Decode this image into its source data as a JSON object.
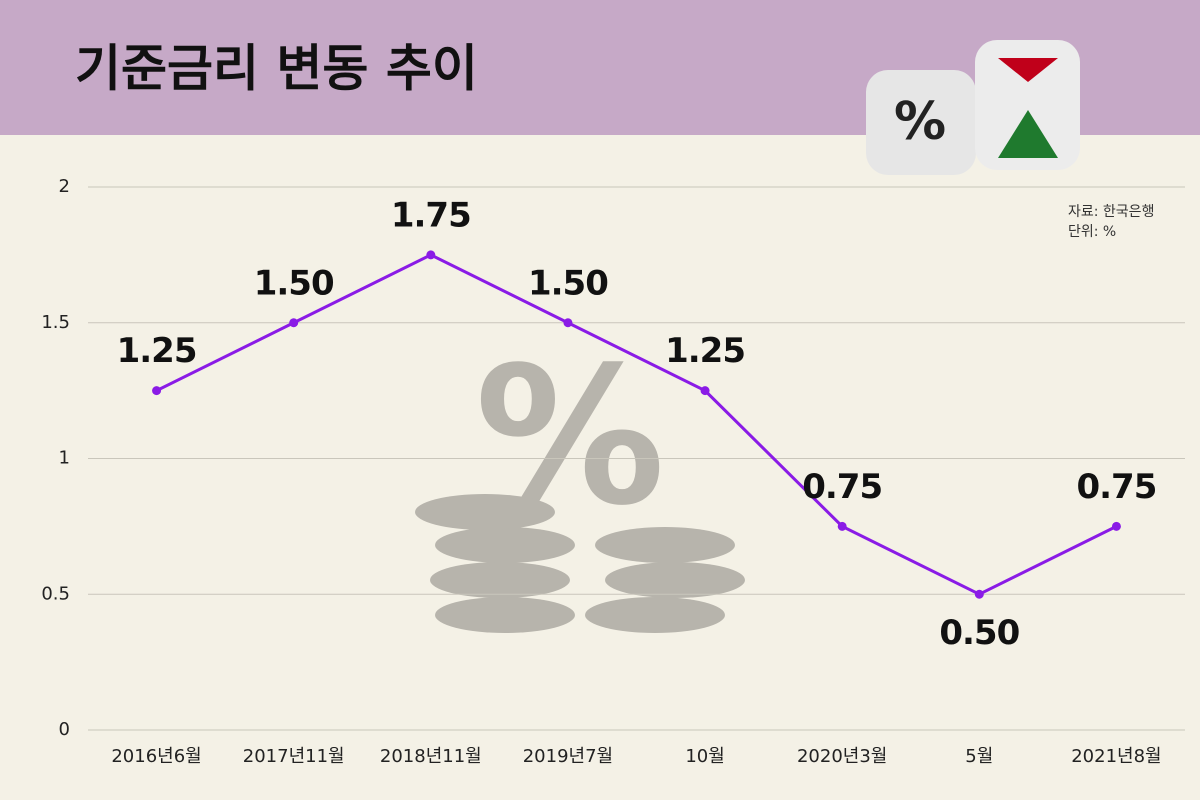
{
  "chart_data": {
    "type": "line",
    "title": "기준금리 변동 추이",
    "source": "자료: 한국은행",
    "unit": "단위: %",
    "categories": [
      "2016년6월",
      "2017년11월",
      "2018년11월",
      "2019년7월",
      "10월",
      "2020년3월",
      "5월",
      "2021년8월"
    ],
    "values": [
      1.25,
      1.5,
      1.75,
      1.5,
      1.25,
      0.75,
      0.5,
      0.75
    ],
    "value_labels": [
      "1.25",
      "1.50",
      "1.75",
      "1.50",
      "1.25",
      "0.75",
      "0.50",
      "0.75"
    ],
    "color": "#8a1be6",
    "ylim": [
      0,
      2
    ],
    "yticks": [
      0,
      0.5,
      1,
      1.5,
      2
    ],
    "grid": true
  }
}
